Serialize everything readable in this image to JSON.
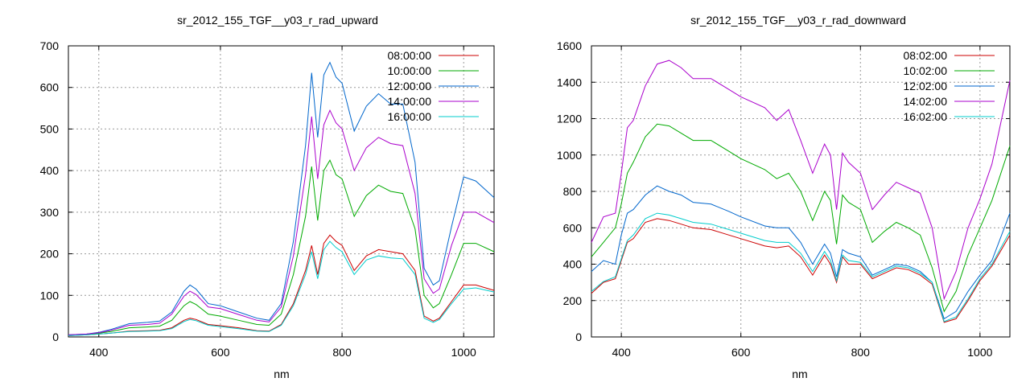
{
  "chart_data": [
    {
      "type": "line",
      "title": "sr_2012_155_TGF__y03_r_rad_upward",
      "xlabel": "nm",
      "ylabel": "",
      "xlim": [
        350,
        1050
      ],
      "ylim": [
        0,
        700
      ],
      "xticks": [
        400,
        600,
        800,
        1000
      ],
      "yticks": [
        0,
        100,
        200,
        300,
        400,
        500,
        600,
        700
      ],
      "grid": true,
      "legend_position": "top-right",
      "series": [
        {
          "name": "08:00:00",
          "color": "#cc0000",
          "x": [
            350,
            380,
            400,
            420,
            450,
            480,
            500,
            520,
            540,
            550,
            560,
            580,
            600,
            630,
            660,
            680,
            700,
            720,
            740,
            750,
            760,
            770,
            780,
            790,
            800,
            820,
            840,
            860,
            880,
            900,
            920,
            935,
            950,
            960,
            980,
            1000,
            1020,
            1050
          ],
          "y": [
            3,
            5,
            7,
            9,
            14,
            15,
            16,
            22,
            40,
            45,
            42,
            30,
            27,
            22,
            15,
            14,
            30,
            80,
            160,
            220,
            150,
            225,
            245,
            230,
            220,
            160,
            195,
            210,
            205,
            200,
            160,
            50,
            38,
            45,
            85,
            125,
            125,
            112
          ]
        },
        {
          "name": "10:00:00",
          "color": "#00aa00",
          "x": [
            350,
            380,
            400,
            420,
            450,
            480,
            500,
            520,
            540,
            550,
            560,
            580,
            600,
            630,
            660,
            680,
            700,
            720,
            740,
            750,
            760,
            770,
            780,
            790,
            800,
            820,
            840,
            860,
            880,
            900,
            920,
            935,
            950,
            960,
            980,
            1000,
            1020,
            1050
          ],
          "y": [
            4,
            6,
            9,
            13,
            22,
            24,
            26,
            40,
            75,
            85,
            78,
            55,
            50,
            40,
            30,
            28,
            55,
            150,
            290,
            410,
            280,
            400,
            425,
            390,
            380,
            290,
            340,
            365,
            350,
            345,
            260,
            100,
            70,
            80,
            150,
            225,
            225,
            205
          ]
        },
        {
          "name": "12:00:00",
          "color": "#0066cc",
          "x": [
            350,
            380,
            400,
            420,
            450,
            480,
            500,
            520,
            540,
            550,
            560,
            580,
            600,
            630,
            660,
            680,
            700,
            720,
            740,
            750,
            760,
            770,
            780,
            790,
            800,
            820,
            840,
            860,
            880,
            900,
            920,
            935,
            950,
            960,
            980,
            1000,
            1020,
            1050
          ],
          "y": [
            5,
            7,
            11,
            18,
            32,
            35,
            38,
            60,
            110,
            125,
            115,
            80,
            75,
            60,
            45,
            40,
            80,
            230,
            460,
            635,
            480,
            630,
            660,
            625,
            610,
            495,
            555,
            585,
            560,
            560,
            420,
            165,
            125,
            135,
            265,
            385,
            375,
            335
          ]
        },
        {
          "name": "14:00:00",
          "color": "#aa00cc",
          "x": [
            350,
            380,
            400,
            420,
            450,
            480,
            500,
            520,
            540,
            550,
            560,
            580,
            600,
            630,
            660,
            680,
            700,
            720,
            740,
            750,
            760,
            770,
            780,
            790,
            800,
            820,
            840,
            860,
            880,
            900,
            920,
            935,
            950,
            960,
            980,
            1000,
            1020,
            1050
          ],
          "y": [
            5,
            7,
            10,
            16,
            28,
            30,
            33,
            55,
            98,
            110,
            102,
            72,
            68,
            54,
            40,
            36,
            72,
            195,
            390,
            530,
            380,
            510,
            545,
            515,
            500,
            400,
            455,
            480,
            465,
            460,
            345,
            140,
            105,
            115,
            220,
            300,
            300,
            275
          ]
        },
        {
          "name": "16:00:00",
          "color": "#00cccc",
          "x": [
            350,
            380,
            400,
            420,
            450,
            480,
            500,
            520,
            540,
            550,
            560,
            580,
            600,
            630,
            660,
            680,
            700,
            720,
            740,
            750,
            760,
            770,
            780,
            790,
            800,
            820,
            840,
            860,
            880,
            900,
            920,
            935,
            950,
            960,
            980,
            1000,
            1020,
            1050
          ],
          "y": [
            3,
            5,
            7,
            9,
            13,
            14,
            15,
            20,
            37,
            42,
            39,
            28,
            25,
            20,
            14,
            13,
            28,
            75,
            150,
            205,
            140,
            210,
            230,
            215,
            205,
            150,
            185,
            195,
            190,
            188,
            150,
            45,
            35,
            42,
            80,
            115,
            118,
            108
          ]
        }
      ]
    },
    {
      "type": "line",
      "title": "sr_2012_155_TGF__y03_r_rad_downward",
      "xlabel": "nm",
      "ylabel": "",
      "xlim": [
        350,
        1050
      ],
      "ylim": [
        0,
        1600
      ],
      "xticks": [
        400,
        600,
        800,
        1000
      ],
      "yticks": [
        0,
        200,
        400,
        600,
        800,
        1000,
        1200,
        1400,
        1600
      ],
      "grid": true,
      "legend_position": "top-right",
      "series": [
        {
          "name": "08:02:00",
          "color": "#cc0000",
          "x": [
            350,
            370,
            390,
            400,
            410,
            420,
            440,
            460,
            480,
            500,
            520,
            550,
            580,
            600,
            640,
            660,
            680,
            700,
            720,
            740,
            750,
            760,
            770,
            780,
            800,
            820,
            840,
            860,
            880,
            900,
            920,
            940,
            960,
            980,
            1000,
            1020,
            1050
          ],
          "y": [
            240,
            300,
            320,
            420,
            520,
            540,
            630,
            650,
            640,
            620,
            600,
            590,
            560,
            540,
            500,
            490,
            500,
            440,
            340,
            450,
            400,
            300,
            440,
            400,
            400,
            320,
            350,
            380,
            370,
            340,
            290,
            80,
            100,
            200,
            310,
            390,
            560
          ]
        },
        {
          "name": "10:02:00",
          "color": "#00aa00",
          "x": [
            350,
            370,
            390,
            400,
            410,
            420,
            440,
            460,
            480,
            500,
            520,
            550,
            580,
            600,
            640,
            660,
            680,
            700,
            720,
            740,
            750,
            760,
            770,
            780,
            800,
            820,
            840,
            860,
            880,
            900,
            920,
            940,
            960,
            980,
            1000,
            1020,
            1050
          ],
          "y": [
            440,
            520,
            600,
            730,
            900,
            960,
            1100,
            1170,
            1160,
            1120,
            1080,
            1080,
            1020,
            980,
            920,
            870,
            900,
            800,
            640,
            800,
            750,
            510,
            780,
            740,
            700,
            520,
            580,
            630,
            600,
            560,
            380,
            140,
            250,
            450,
            600,
            750,
            1050
          ]
        },
        {
          "name": "12:02:00",
          "color": "#0066cc",
          "x": [
            350,
            370,
            390,
            400,
            410,
            420,
            440,
            460,
            480,
            500,
            520,
            550,
            580,
            600,
            640,
            660,
            680,
            700,
            720,
            740,
            750,
            760,
            770,
            780,
            800,
            820,
            840,
            860,
            880,
            900,
            920,
            940,
            960,
            980,
            1000,
            1020,
            1050
          ],
          "y": [
            360,
            420,
            400,
            560,
            680,
            700,
            780,
            830,
            800,
            780,
            740,
            730,
            690,
            660,
            610,
            600,
            600,
            520,
            400,
            510,
            460,
            330,
            480,
            460,
            440,
            340,
            370,
            400,
            390,
            360,
            300,
            100,
            140,
            250,
            340,
            420,
            680
          ]
        },
        {
          "name": "14:02:00",
          "color": "#aa00cc",
          "x": [
            350,
            370,
            390,
            400,
            410,
            420,
            440,
            460,
            480,
            500,
            520,
            550,
            580,
            600,
            640,
            660,
            680,
            700,
            720,
            740,
            750,
            760,
            770,
            780,
            800,
            820,
            840,
            860,
            880,
            900,
            920,
            940,
            960,
            980,
            1000,
            1020,
            1050
          ],
          "y": [
            520,
            660,
            680,
            900,
            1150,
            1190,
            1380,
            1500,
            1520,
            1480,
            1420,
            1420,
            1360,
            1320,
            1260,
            1190,
            1250,
            1080,
            900,
            1060,
            1000,
            700,
            1010,
            960,
            900,
            700,
            780,
            850,
            820,
            790,
            600,
            210,
            360,
            600,
            760,
            950,
            1410
          ]
        },
        {
          "name": "16:02:00",
          "color": "#00cccc",
          "x": [
            350,
            370,
            390,
            400,
            410,
            420,
            440,
            460,
            480,
            500,
            520,
            550,
            580,
            600,
            640,
            660,
            680,
            700,
            720,
            740,
            750,
            760,
            770,
            780,
            800,
            820,
            840,
            860,
            880,
            900,
            920,
            940,
            960,
            980,
            1000,
            1020,
            1050
          ],
          "y": [
            250,
            305,
            330,
            430,
            530,
            560,
            650,
            680,
            670,
            650,
            630,
            620,
            590,
            570,
            530,
            520,
            520,
            460,
            360,
            470,
            420,
            310,
            450,
            420,
            410,
            330,
            360,
            390,
            380,
            350,
            300,
            85,
            110,
            210,
            320,
            400,
            580
          ]
        }
      ]
    }
  ]
}
